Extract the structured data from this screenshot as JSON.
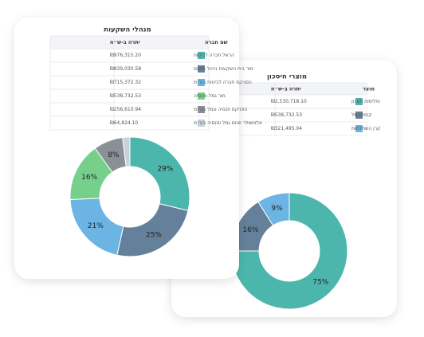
{
  "cards": [
    {
      "title": "מנהלי השקעות",
      "table": {
        "headers": [
          "שם חברה",
          "יתרה ב-ש״ח"
        ],
        "rows": [
          [
            "הראל חברה לביטוח",
            "₪976,315.20"
          ],
          [
            "מור בית השקעות ניהול תיקים",
            "₪839,030.58"
          ],
          [
            "הפניקס חברה לביטוח בע״מ",
            "₪715,372.32"
          ],
          [
            "מור גמל ופנסיה",
            "₪538,732.53"
          ],
          [
            "הפניקס פנסיה וגמל בע״מ",
            "₪256,610.94"
          ],
          [
            "אלטשולר שחם גמל ופנסיה בע״מ",
            "₪64,824.10"
          ]
        ]
      }
    },
    {
      "title": "מוצרי חיסכון",
      "table": {
        "headers": [
          "מוצר",
          "יתרה ב-ש״ח"
        ],
        "rows": [
          [
            "פוליסות חסכון",
            "₪2,530,718.10"
          ],
          [
            "קופת גמל",
            "₪538,732.53"
          ],
          [
            "קרן השתלמות",
            "₪321,495.04"
          ]
        ]
      }
    }
  ],
  "chart_data": [
    {
      "type": "donut",
      "values": [
        29,
        25,
        21,
        16,
        8,
        2
      ],
      "value_labels": [
        "29%",
        "25%",
        "21%",
        "16%",
        "8%",
        null
      ],
      "colors": [
        "#4db6ac",
        "#65809a",
        "#6cb4e4",
        "#76d08c",
        "#8a9096",
        "#c5d1db"
      ]
    },
    {
      "type": "donut",
      "values": [
        75,
        16,
        9
      ],
      "value_labels": [
        "75%",
        "16%",
        "9%"
      ],
      "colors": [
        "#4db6ac",
        "#65809a",
        "#6cb4e4"
      ]
    }
  ]
}
